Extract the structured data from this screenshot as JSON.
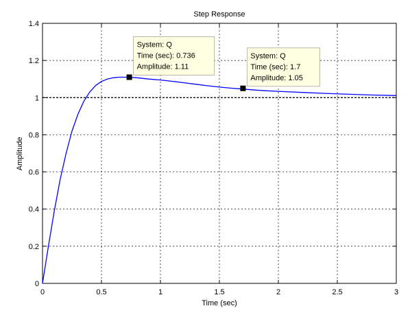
{
  "chart_data": {
    "type": "line",
    "title": "Step Response",
    "xlabel": "Time (sec)",
    "ylabel": "Amplitude",
    "xlim": [
      0,
      3
    ],
    "ylim": [
      0,
      1.4
    ],
    "grid": true,
    "x_ticks": [
      0,
      0.5,
      1,
      1.5,
      2,
      2.5,
      3
    ],
    "x_tick_labels": [
      "0",
      "0.5",
      "1",
      "1.5",
      "2",
      "2.5",
      "3"
    ],
    "y_ticks": [
      0,
      0.2,
      0.4,
      0.6,
      0.8,
      1,
      1.2,
      1.4
    ],
    "y_tick_labels": [
      "0",
      "0.2",
      "0.4",
      "0.6",
      "0.8",
      "1",
      "1.2",
      "1.4"
    ],
    "reference_line": {
      "y": 1
    },
    "series": [
      {
        "color": "#0000ff",
        "x": [
          0,
          0.05,
          0.1,
          0.15,
          0.2,
          0.25,
          0.3,
          0.35,
          0.4,
          0.45,
          0.5,
          0.55,
          0.6,
          0.65,
          0.7,
          0.75,
          0.8,
          0.9,
          1.0,
          1.1,
          1.2,
          1.3,
          1.4,
          1.5,
          1.6,
          1.7,
          1.8,
          1.9,
          2.0,
          2.2,
          2.4,
          2.6,
          2.8,
          3.0
        ],
        "y": [
          0,
          0.2,
          0.39,
          0.56,
          0.7,
          0.82,
          0.91,
          0.98,
          1.03,
          1.065,
          1.087,
          1.1,
          1.107,
          1.11,
          1.11,
          1.109,
          1.107,
          1.1,
          1.095,
          1.088,
          1.08,
          1.072,
          1.064,
          1.057,
          1.051,
          1.046,
          1.041,
          1.037,
          1.034,
          1.028,
          1.023,
          1.018,
          1.014,
          1.011
        ]
      }
    ],
    "datatips": [
      {
        "x": 0.736,
        "y": 1.11,
        "lines": [
          "System: Q",
          "Time (sec): 0.736",
          "Amplitude: 1.11"
        ]
      },
      {
        "x": 1.7,
        "y": 1.05,
        "lines": [
          "System: Q",
          "Time (sec): 1.7",
          "Amplitude: 1.05"
        ]
      }
    ],
    "colors": {
      "line": "#0000ff",
      "grid": "#000000",
      "datatip_bg": "#ffffe1",
      "datatip_border": "#b9b9a8"
    }
  }
}
